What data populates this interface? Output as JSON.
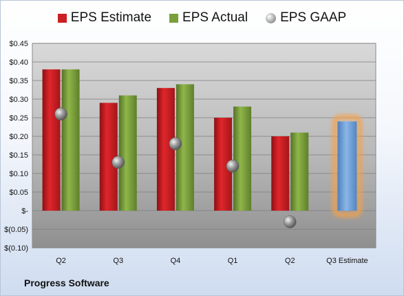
{
  "footer_title": "Progress Software",
  "chart_data": {
    "type": "bar",
    "categories": [
      "Q2",
      "Q3",
      "Q4",
      "Q1",
      "Q2",
      "Q3 Estimate"
    ],
    "series": [
      {
        "name": "EPS Estimate",
        "color": "#cc1f23",
        "values": [
          0.38,
          0.29,
          0.33,
          0.25,
          0.2,
          null
        ]
      },
      {
        "name": "EPS Actual",
        "color": "#7aa03a",
        "values": [
          0.38,
          0.31,
          0.34,
          0.28,
          0.21,
          null
        ]
      },
      {
        "name": "EPS GAAP",
        "marker": "ball",
        "color": "#9a9a9a",
        "values": [
          0.26,
          0.13,
          0.18,
          0.12,
          -0.03,
          null
        ]
      }
    ],
    "estimate_bar": {
      "category": "Q3 Estimate",
      "value": 0.24,
      "color": "#6fa0d8",
      "glow": "#f5a24a"
    },
    "yticks": [
      "$0.45",
      "$0.40",
      "$0.35",
      "$0.30",
      "$0.25",
      "$0.20",
      "$0.15",
      "$0.10",
      "$0.05",
      "$-",
      "$(0.05)",
      "$(0.10)"
    ],
    "ylim": [
      -0.1,
      0.45
    ],
    "legend_position": "top",
    "grid": true
  }
}
